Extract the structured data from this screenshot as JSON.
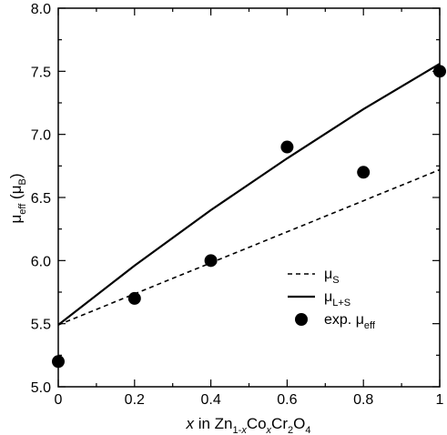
{
  "chart_data": {
    "type": "line",
    "xlim": [
      0,
      1
    ],
    "ylim": [
      5.0,
      8.0
    ],
    "x_ticks": [
      0,
      0.2,
      0.4,
      0.6,
      0.8,
      1
    ],
    "x_tick_labels": [
      "0",
      "0.2",
      "0.4",
      "0.6",
      "0.8",
      "1"
    ],
    "y_ticks": [
      5.0,
      5.5,
      6.0,
      6.5,
      7.0,
      7.5,
      8.0
    ],
    "y_tick_labels": [
      "5.0",
      "5.5",
      "6.0",
      "6.5",
      "7.0",
      "7.5",
      "8.0"
    ],
    "xlabel": {
      "var": "x",
      "in": " in Zn",
      "sub1": "1-",
      "sub1_var": "x",
      "co": "Co",
      "sub2_var": "x",
      "cr": "Cr",
      "sub3": "2",
      "o": "O",
      "sub4": "4"
    },
    "ylabel": {
      "mu": "μ",
      "mu_sub": "eff",
      "paren_open": " (μ",
      "b_sub": "B",
      "paren_close": ")"
    },
    "grid": false,
    "legend_position": "lower-right",
    "series": [
      {
        "legend_main": "μ",
        "legend_sub": "S",
        "style": "dashed",
        "x": [
          0,
          1
        ],
        "y": [
          5.49,
          6.72
        ]
      },
      {
        "legend_main": "μ",
        "legend_sub": "L+S",
        "style": "solid",
        "x": [
          0,
          0.2,
          0.4,
          0.6,
          0.8,
          1
        ],
        "y": [
          5.49,
          5.96,
          6.4,
          6.81,
          7.2,
          7.56
        ]
      },
      {
        "legend_main": "exp. μ",
        "legend_sub": "eff",
        "style": "markers",
        "x": [
          0,
          0.2,
          0.4,
          0.6,
          0.8,
          1
        ],
        "y": [
          5.2,
          5.7,
          6.0,
          6.9,
          6.7,
          7.5
        ]
      }
    ],
    "colors": {
      "line": "#000000",
      "marker": "#000000"
    }
  }
}
